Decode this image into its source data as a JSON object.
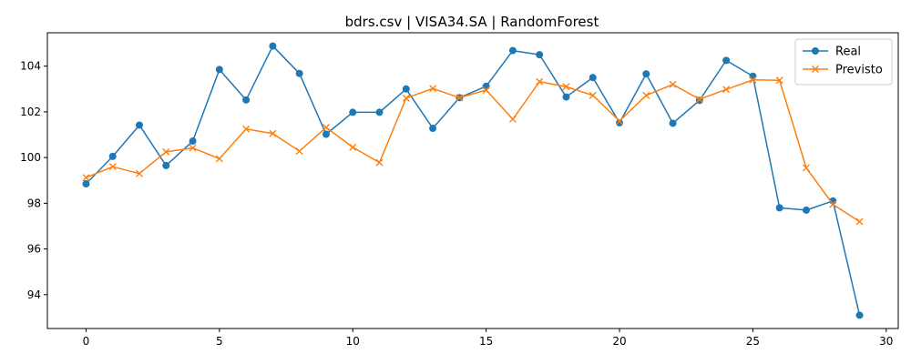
{
  "chart_data": {
    "type": "line",
    "title": "bdrs.csv | VISA34.SA | RandomForest",
    "xlabel": "",
    "ylabel": "",
    "xlim": [
      -1.45,
      30.45
    ],
    "ylim": [
      92.52,
      105.46
    ],
    "xticks": [
      0,
      5,
      10,
      15,
      20,
      25,
      30
    ],
    "yticks": [
      94,
      96,
      98,
      100,
      102,
      104
    ],
    "grid": false,
    "legend_position": "top-right",
    "x": [
      0,
      1,
      2,
      3,
      4,
      5,
      6,
      7,
      8,
      9,
      10,
      11,
      12,
      13,
      14,
      15,
      16,
      17,
      18,
      19,
      20,
      21,
      22,
      23,
      24,
      25,
      26,
      27,
      28,
      29
    ],
    "series": [
      {
        "name": "Real",
        "color": "#1f77b4",
        "marker": "circle",
        "values": [
          98.85,
          100.05,
          101.42,
          99.65,
          100.72,
          103.85,
          102.52,
          104.88,
          103.68,
          101.02,
          101.98,
          101.98,
          103.0,
          101.28,
          102.62,
          103.12,
          104.68,
          104.5,
          102.65,
          103.5,
          101.52,
          103.66,
          101.5,
          102.5,
          104.25,
          103.56,
          97.8,
          97.7,
          98.1,
          93.1
        ]
      },
      {
        "name": "Previsto",
        "color": "#ff7f0e",
        "marker": "x",
        "values": [
          99.12,
          99.6,
          99.3,
          100.25,
          100.42,
          99.95,
          101.25,
          101.05,
          100.28,
          101.32,
          100.45,
          99.78,
          102.6,
          103.02,
          102.62,
          102.95,
          101.68,
          103.32,
          103.1,
          102.72,
          101.6,
          102.72,
          103.2,
          102.55,
          102.98,
          103.4,
          103.38,
          99.55,
          97.95,
          97.2
        ]
      }
    ]
  }
}
